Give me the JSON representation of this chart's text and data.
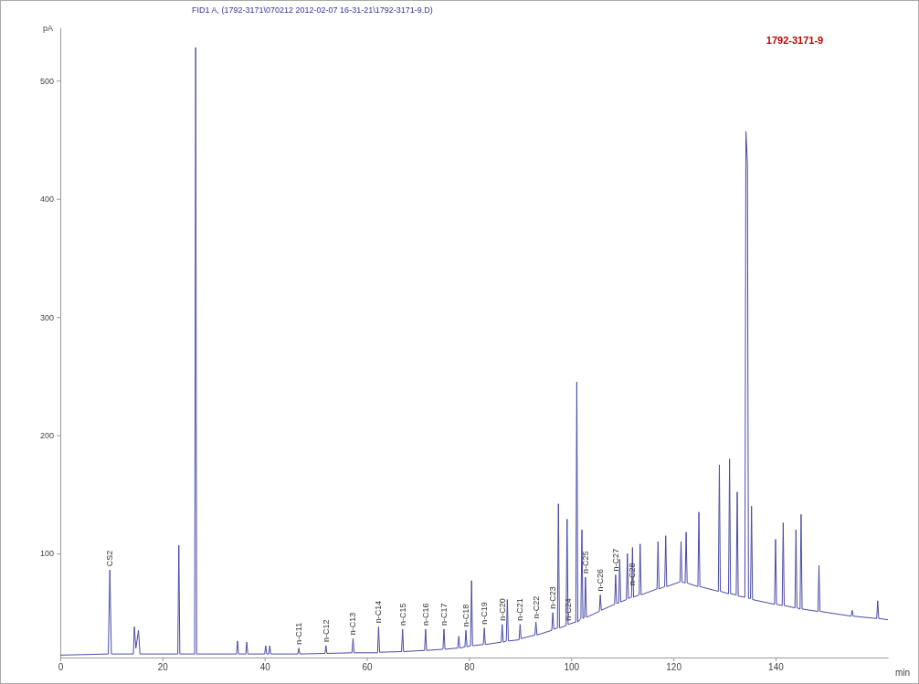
{
  "chart_data": {
    "type": "line",
    "title": "FID1 A, (1792-3171\\070212 2012-02-07 16-31-21\\1792-3171-9.D)",
    "xlabel": "min",
    "ylabel": "pA",
    "xlim": [
      0,
      162
    ],
    "xticks": [
      0,
      20,
      40,
      60,
      80,
      100,
      120,
      140
    ],
    "ylim": [
      12,
      545
    ],
    "yticks": [
      100,
      200,
      300,
      400,
      500
    ],
    "series": [
      {
        "color": "#4a4aa8",
        "x": [
          0,
          9.4,
          9.7,
          10.0,
          14.3,
          14.5,
          14.8,
          15.3,
          15.6,
          23.0,
          23.2,
          23.4,
          26.3,
          26.5,
          26.7,
          34.5,
          34.7,
          34.9,
          36.3,
          36.5,
          36.7,
          40.0,
          40.2,
          40.4,
          40.8,
          41.0,
          41.2,
          46.5,
          46.7,
          46.9,
          51.8,
          52.0,
          52.2,
          57.1,
          57.3,
          57.5,
          62.1,
          62.3,
          62.5,
          66.8,
          67.0,
          67.2,
          71.3,
          71.5,
          71.7,
          74.9,
          75.1,
          75.3,
          77.8,
          78.0,
          78.2,
          79.2,
          79.4,
          79.6,
          80.3,
          80.5,
          80.7,
          82.8,
          83.0,
          83.2,
          86.3,
          86.5,
          86.7,
          87.3,
          87.5,
          87.7,
          89.8,
          90.0,
          90.2,
          92.9,
          93.1,
          93.3,
          96.2,
          96.4,
          96.6,
          97.3,
          97.5,
          97.7,
          99.0,
          99.2,
          99.4,
          100.9,
          101.1,
          101.3,
          101.9,
          102.1,
          102.3,
          102.6,
          102.8,
          103.0,
          105.5,
          105.7,
          105.9,
          108.5,
          108.7,
          108.9,
          109.3,
          109.5,
          109.7,
          110.8,
          111.0,
          111.2,
          111.8,
          112.0,
          112.2,
          113.3,
          113.5,
          113.7,
          116.8,
          117.0,
          117.2,
          118.3,
          118.5,
          118.7,
          121.3,
          121.5,
          121.7,
          122.3,
          122.5,
          122.7,
          124.8,
          125.0,
          125.2,
          128.8,
          129.0,
          129.2,
          130.8,
          131.0,
          131.2,
          132.3,
          132.5,
          132.7,
          134.0,
          134.2,
          134.5,
          134.7,
          135.1,
          135.3,
          135.5,
          139.8,
          140.0,
          140.2,
          141.3,
          141.5,
          141.7,
          143.8,
          144.0,
          144.2,
          144.8,
          145.0,
          145.2,
          148.3,
          148.5,
          148.7,
          154.8,
          155.0,
          155.2,
          159.8,
          160.0,
          160.2,
          162
        ],
        "values": [
          14,
          15,
          86,
          15,
          15,
          38,
          20,
          35,
          15,
          15,
          107,
          15,
          15,
          528,
          15,
          15,
          26,
          15,
          15,
          25,
          15,
          15,
          22,
          15,
          15,
          22,
          15,
          15,
          20,
          15,
          15.5,
          22,
          15.5,
          16,
          28,
          16,
          16,
          38,
          16.5,
          17,
          36,
          17,
          18,
          36,
          18,
          19,
          36,
          19,
          20,
          30,
          20,
          21,
          35,
          21,
          22,
          77,
          22,
          23,
          37,
          23,
          25,
          40,
          25,
          26,
          61,
          26,
          27,
          40,
          28,
          31,
          42,
          31,
          35,
          50,
          36,
          37,
          142,
          37,
          39,
          129,
          40,
          42,
          245,
          42,
          45,
          120,
          45,
          46,
          80,
          46,
          51,
          65,
          52,
          57,
          82,
          58,
          58,
          95,
          59,
          61,
          100,
          62,
          63,
          105,
          63,
          65,
          108,
          65,
          70,
          110,
          70,
          72,
          115,
          72,
          76,
          110,
          76,
          75,
          118,
          75,
          72,
          135,
          72,
          68,
          175,
          68,
          66,
          180,
          66,
          65,
          152,
          64,
          63,
          457,
          430,
          62,
          62,
          140,
          61,
          57,
          112,
          57,
          56,
          126,
          56,
          54,
          120,
          54,
          53,
          133,
          53,
          51,
          90,
          51,
          47,
          52,
          47,
          45,
          60,
          45,
          44
        ]
      }
    ],
    "annotations": [
      "1792-3171-9",
      {
        "text": "CS2",
        "x": 9.7,
        "y": 86
      },
      {
        "text": "n-C11",
        "x": 46.7,
        "y": 20
      },
      {
        "text": "n-C12",
        "x": 52.0,
        "y": 22
      },
      {
        "text": "n-C13",
        "x": 57.3,
        "y": 28
      },
      {
        "text": "n-C14",
        "x": 62.3,
        "y": 38
      },
      {
        "text": "n-C15",
        "x": 67.0,
        "y": 36
      },
      {
        "text": "n-C16",
        "x": 71.5,
        "y": 36
      },
      {
        "text": "n-C17",
        "x": 75.1,
        "y": 36
      },
      {
        "text": "n-C18",
        "x": 79.4,
        "y": 35
      },
      {
        "text": "n-C19",
        "x": 83.0,
        "y": 37
      },
      {
        "text": "n-C20",
        "x": 86.5,
        "y": 40
      },
      {
        "text": "n-C21",
        "x": 90.0,
        "y": 40
      },
      {
        "text": "n-C22",
        "x": 93.1,
        "y": 42
      },
      {
        "text": "n-C23",
        "x": 96.4,
        "y": 50
      },
      {
        "text": "n-C24",
        "x": 99.4,
        "y": 40
      },
      {
        "text": "n-C25",
        "x": 102.8,
        "y": 80
      },
      {
        "text": "n-C26",
        "x": 105.7,
        "y": 65
      },
      {
        "text": "n-C27",
        "x": 108.7,
        "y": 82
      },
      {
        "text": "n-C28",
        "x": 112.0,
        "y": 70
      }
    ]
  }
}
